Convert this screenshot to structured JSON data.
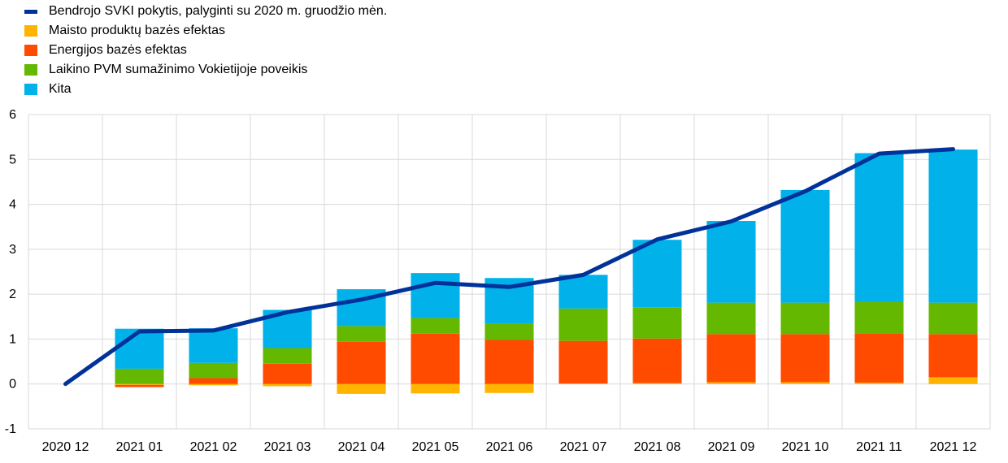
{
  "colors": {
    "line": "#003299",
    "food": "#FFB400",
    "energy": "#FF4B00",
    "vat": "#65B800",
    "other": "#00B1EA",
    "grid": "#d9d9d9"
  },
  "chart_data": {
    "type": "bar",
    "stacked": true,
    "categories": [
      "2020 12",
      "2021 01",
      "2021 02",
      "2021 03",
      "2021 04",
      "2021 05",
      "2021 06",
      "2021 07",
      "2021 08",
      "2021 09",
      "2021 10",
      "2021 11",
      "2021 12"
    ],
    "ylim": [
      -1,
      6
    ],
    "yticks": [
      -1,
      0,
      1,
      2,
      3,
      4,
      5,
      6
    ],
    "grid": true,
    "legend_position": "top-left",
    "title": "",
    "xlabel": "",
    "ylabel": "",
    "series": [
      {
        "name": "Maisto produktų bazės efektas",
        "key": "food",
        "kind": "bar",
        "values": [
          0,
          -0.02,
          -0.03,
          -0.05,
          -0.22,
          -0.21,
          -0.2,
          0.01,
          0.02,
          0.04,
          0.04,
          0.03,
          0.15
        ]
      },
      {
        "name": "Energijos bazės efektas",
        "key": "energy",
        "kind": "bar",
        "values": [
          0,
          -0.05,
          0.13,
          0.45,
          0.94,
          1.12,
          0.98,
          0.95,
          0.99,
          1.07,
          1.07,
          1.1,
          0.96
        ]
      },
      {
        "name": "Laikino PVM sumažinimo Vokietijoje poveikis",
        "key": "vat",
        "kind": "bar",
        "values": [
          0,
          0.34,
          0.34,
          0.35,
          0.35,
          0.35,
          0.36,
          0.72,
          0.7,
          0.7,
          0.7,
          0.7,
          0.7
        ]
      },
      {
        "name": "Kita",
        "key": "other",
        "kind": "bar",
        "values": [
          0,
          0.89,
          0.77,
          0.85,
          0.82,
          1.0,
          1.02,
          0.75,
          1.5,
          1.82,
          2.51,
          3.31,
          3.41
        ]
      }
    ],
    "line": {
      "name": "Bendrojo SVKI pokytis, palyginti su 2020 m. gruodžio mėn.",
      "key": "line",
      "values": [
        0,
        1.17,
        1.19,
        1.6,
        1.88,
        2.25,
        2.16,
        2.43,
        3.22,
        3.62,
        4.29,
        5.13,
        5.23
      ]
    }
  }
}
